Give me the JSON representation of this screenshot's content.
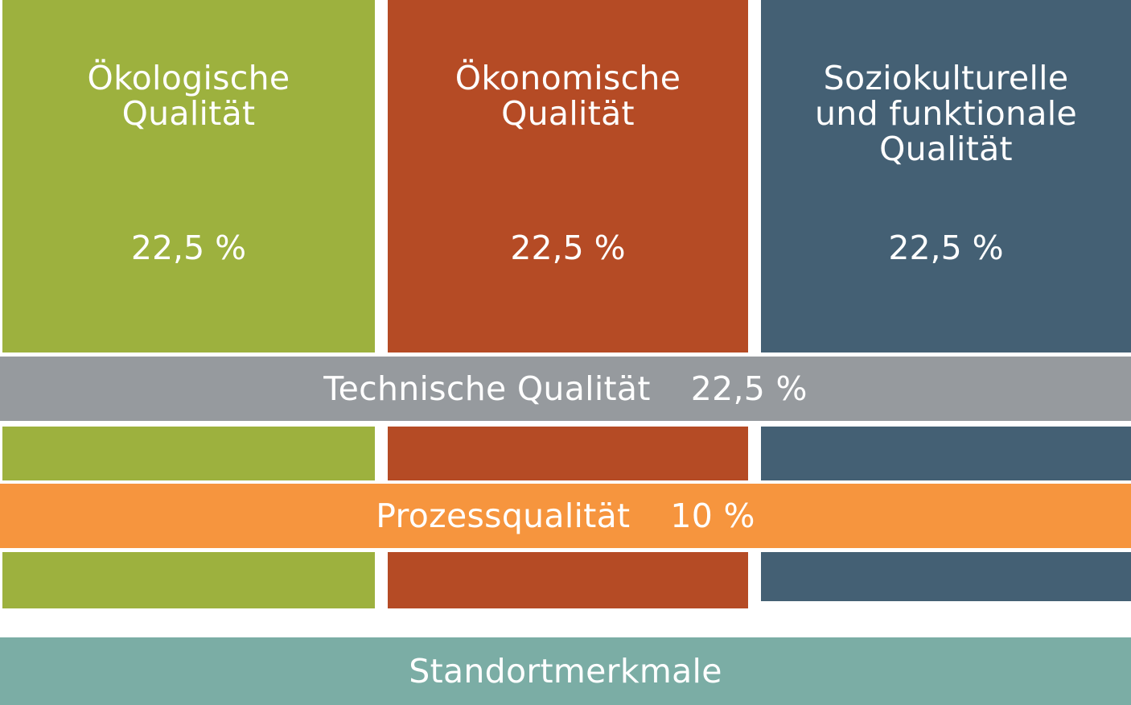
{
  "colors": {
    "ecological": "#9DB13E",
    "economic": "#B54B25",
    "sociocultural": "#446074",
    "technical": "#969A9E",
    "process": "#F6953E",
    "site": "#7BADA5"
  },
  "columns": [
    {
      "title_lines": [
        "Ökologische",
        "Qualität"
      ],
      "value": "22,5 %"
    },
    {
      "title_lines": [
        "Ökonomische",
        "Qualität"
      ],
      "value": "22,5 %"
    },
    {
      "title_lines": [
        "Soziokulturelle",
        "und funktionale",
        "Qualität"
      ],
      "value": "22,5 %"
    }
  ],
  "bands": {
    "technical": {
      "label": "Technische Qualität",
      "value": "22,5 %"
    },
    "process": {
      "label": "Prozessqualität",
      "value": "10 %"
    },
    "site": {
      "label": "Standortmerkmale"
    }
  }
}
